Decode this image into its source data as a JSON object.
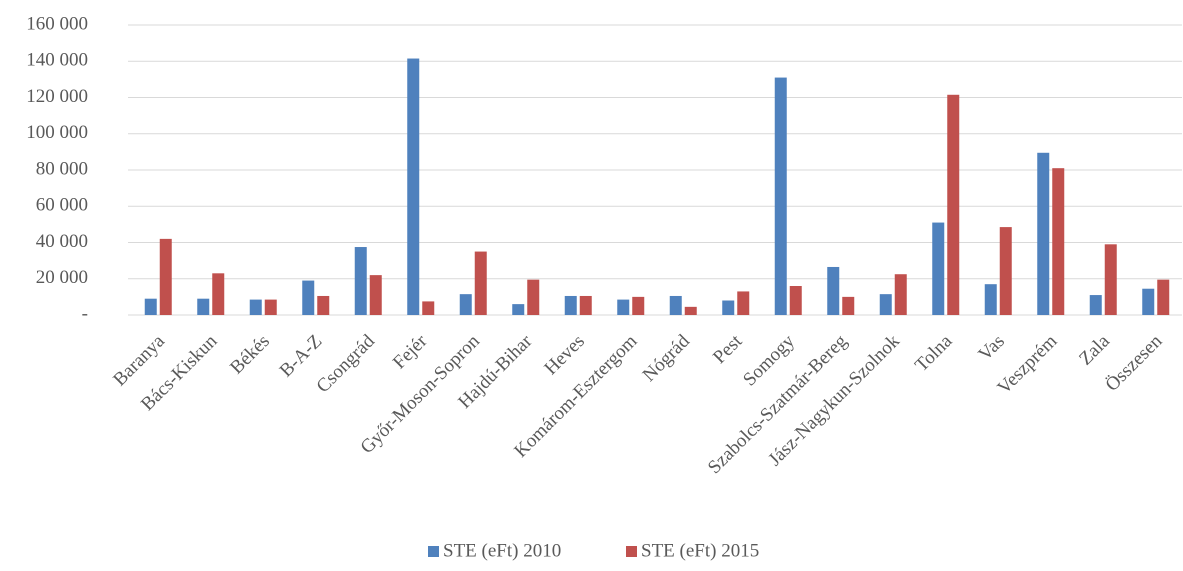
{
  "chart_data": {
    "type": "bar",
    "categories": [
      "Baranya",
      "Bács-Kiskun",
      "Békés",
      "B-A-Z",
      "Csongrád",
      "Fejér",
      "Győr-Moson-Sopron",
      "Hajdú-Bihar",
      "Heves",
      "Komárom-Esztergom",
      "Nógrád",
      "Pest",
      "Somogy",
      "Szabolcs-Szatmár-Bereg",
      "Jász-Nagykun-Szolnok",
      "Tolna",
      "Vas",
      "Veszprém",
      "Zala",
      "Összesen"
    ],
    "series": [
      {
        "name": "STE (eFt) 2010",
        "color": "#4f81bd",
        "values": [
          9000,
          9000,
          8500,
          19000,
          37500,
          141500,
          11500,
          6000,
          10500,
          8500,
          10500,
          8000,
          131000,
          26500,
          11500,
          51000,
          17000,
          89500,
          11000,
          14500
        ]
      },
      {
        "name": "STE (eFt) 2015",
        "color": "#c0504d",
        "values": [
          42000,
          23000,
          8500,
          10500,
          22000,
          7500,
          35000,
          19500,
          10500,
          10000,
          4500,
          13000,
          16000,
          10000,
          22500,
          121500,
          48500,
          81000,
          39000,
          19500
        ]
      }
    ],
    "ylim": [
      0,
      160000
    ],
    "yticks": [
      {
        "value": 0,
        "label": "-"
      },
      {
        "value": 20000,
        "label": "20 000"
      },
      {
        "value": 40000,
        "label": "40 000"
      },
      {
        "value": 60000,
        "label": "60 000"
      },
      {
        "value": 80000,
        "label": "80 000"
      },
      {
        "value": 100000,
        "label": "100 000"
      },
      {
        "value": 120000,
        "label": "120 000"
      },
      {
        "value": 140000,
        "label": "140 000"
      },
      {
        "value": 160000,
        "label": "160 000"
      }
    ],
    "grid": true,
    "legend": "bottom"
  }
}
